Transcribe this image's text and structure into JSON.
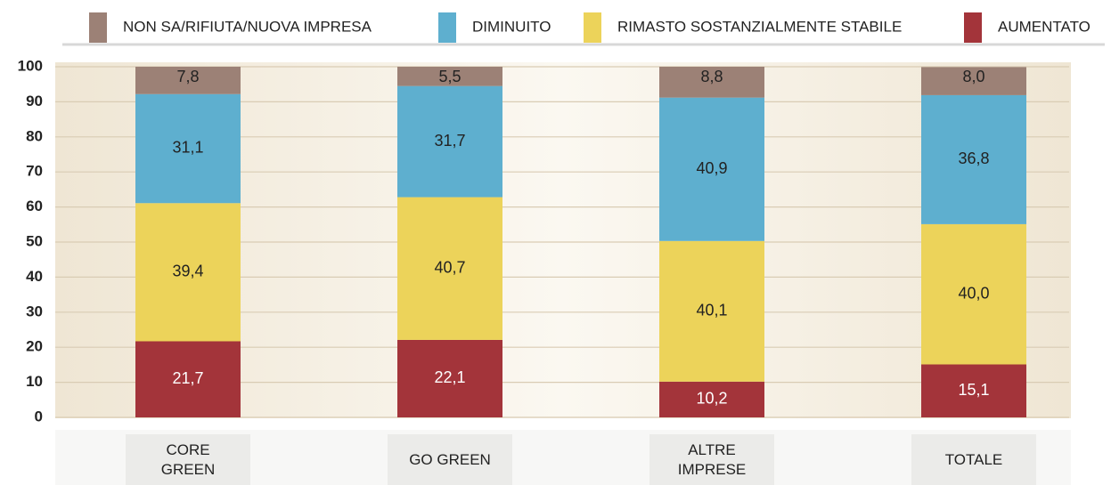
{
  "chart_data": {
    "type": "stacked_bar",
    "categories": [
      "CORE GREEN",
      "GO GREEN",
      "ALTRE IMPRESE",
      "TOTALE"
    ],
    "series": [
      {
        "name": "AUMENTATO",
        "color": "#a3343a",
        "values": [
          21.7,
          22.1,
          10.2,
          15.1
        ],
        "value_labels": [
          "21,7",
          "22,1",
          "10,2",
          "15,1"
        ]
      },
      {
        "name": "RIMASTO SOSTANZIALMENTE STABILE",
        "color": "#ecd35a",
        "values": [
          39.4,
          40.7,
          40.1,
          40.0
        ],
        "value_labels": [
          "39,4",
          "40,7",
          "40,1",
          "40,0"
        ]
      },
      {
        "name": "DIMINUITO",
        "color": "#5eafcf",
        "values": [
          31.1,
          31.7,
          40.9,
          36.8
        ],
        "value_labels": [
          "31,1",
          "31,7",
          "40,9",
          "36,8"
        ]
      },
      {
        "name": "NON SA/RIFIUTA/NUOVA IMPRESA",
        "color": "#9c8176",
        "values": [
          7.8,
          5.5,
          8.8,
          8.0
        ],
        "value_labels": [
          "7,8",
          "5,5",
          "8,8",
          "8,0"
        ]
      }
    ],
    "ylim": [
      0,
      100
    ],
    "yticks": [
      0,
      10,
      20,
      30,
      40,
      50,
      60,
      70,
      80,
      90,
      100
    ],
    "grid": true
  }
}
